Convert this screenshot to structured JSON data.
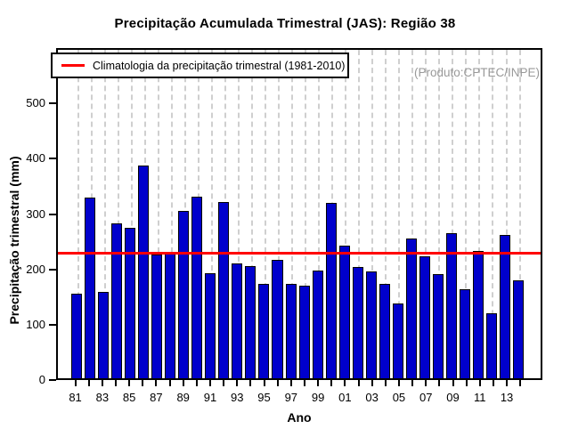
{
  "title": "Precipitação Acumulada Trimestral (JAS): Região 38",
  "produto_note": "(Produto:CPTEC/INPE)",
  "legend": {
    "label": "Climatologia da precipitação trimestral (1981-2010)",
    "line_color": "#FF0000",
    "position": "topleft"
  },
  "chart_data": {
    "type": "bar",
    "title": "Precipitação Acumulada Trimestral (JAS): Região 38",
    "xlabel": "Ano",
    "ylabel": "Precipitação trimestral (mm)",
    "categories": [
      "81",
      "82",
      "83",
      "84",
      "85",
      "86",
      "87",
      "88",
      "89",
      "90",
      "91",
      "92",
      "93",
      "94",
      "95",
      "96",
      "97",
      "98",
      "99",
      "00",
      "01",
      "02",
      "03",
      "04",
      "05",
      "06",
      "07",
      "08",
      "09",
      "10",
      "11",
      "12",
      "13",
      "14"
    ],
    "values": [
      155,
      330,
      158,
      283,
      275,
      388,
      226,
      230,
      306,
      331,
      192,
      322,
      209,
      205,
      172,
      217,
      172,
      169,
      196,
      321,
      242,
      204,
      195,
      172,
      136,
      255,
      222,
      191,
      265,
      162,
      233,
      119,
      262,
      179
    ],
    "x_tick_labels_shown": [
      "81",
      "83",
      "85",
      "87",
      "89",
      "91",
      "93",
      "95",
      "97",
      "99",
      "01",
      "03",
      "05",
      "07",
      "09",
      "11",
      "13"
    ],
    "label_every_n_bars": 2,
    "y_ticks": [
      0,
      100,
      200,
      300,
      400,
      500
    ],
    "ylim": [
      0,
      600
    ],
    "climatology_line_value": 230,
    "bar_color": "#0000CC",
    "bar_border_color": "#000000",
    "climatology_line_color": "#FF0000",
    "grid": "vertical-dashed-at-each-bar",
    "grid_color": "#cfcfcf",
    "legend_position": "topleft"
  }
}
